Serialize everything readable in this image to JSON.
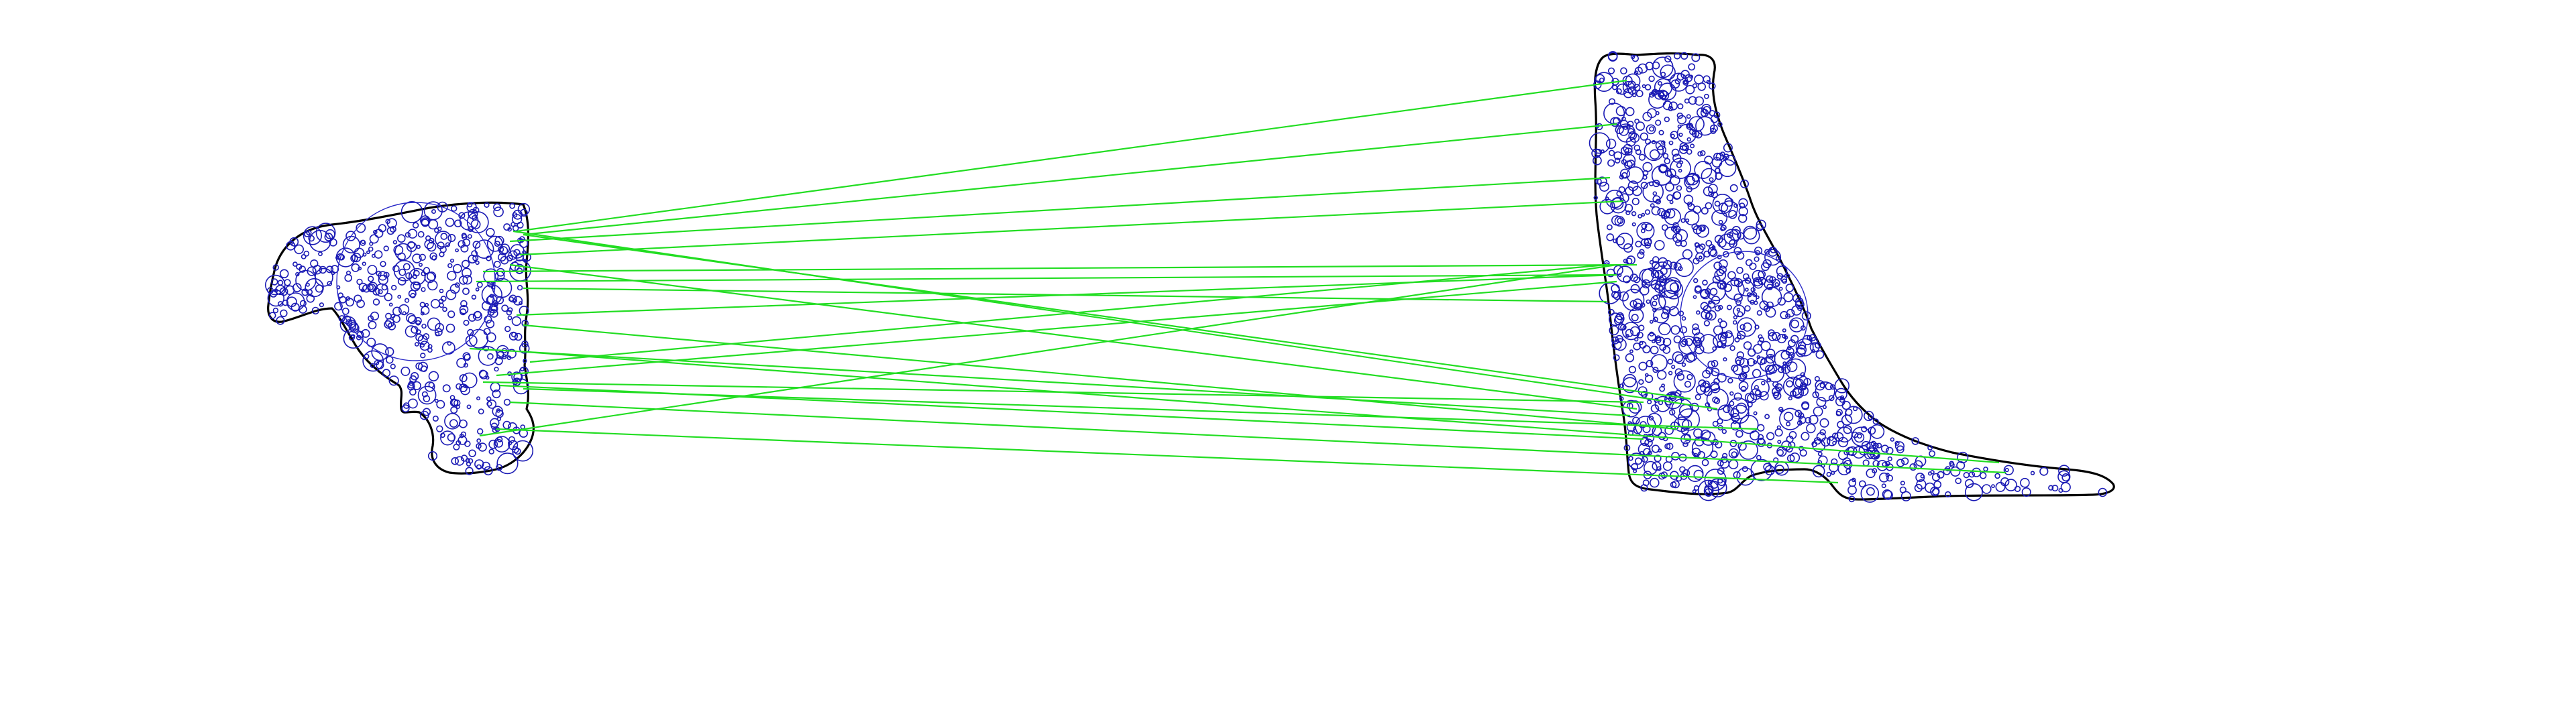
{
  "figure": {
    "kind": "feature-matching-visualization",
    "background_color": "#ffffff",
    "outline_color": "#000000",
    "feature_color": "#1a1ab4",
    "match_line_color": "#22dd22",
    "shapes": [
      {
        "name": "left-shape",
        "depicts": "animal-silhouette-fragment",
        "feature-seed": 7
      },
      {
        "name": "right-shape",
        "depicts": "boot-silhouette",
        "feature-seed": 13
      }
    ],
    "match_count": 22
  }
}
